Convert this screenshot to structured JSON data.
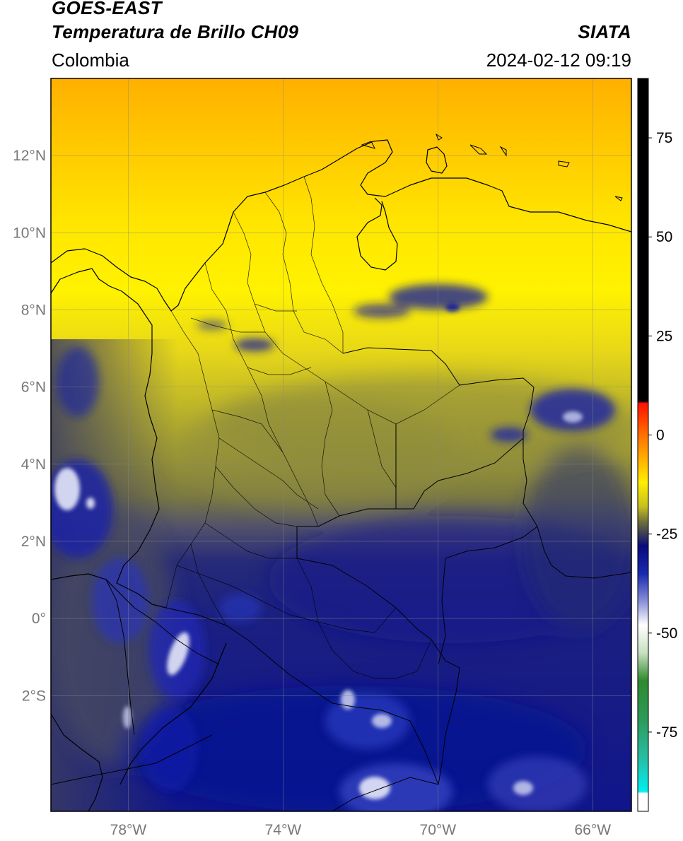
{
  "header": {
    "title_line1": "GOES-EAST",
    "title_line2": "Temperatura de Brillo CH09",
    "region": "Colombia",
    "brand": "SIATA",
    "timestamp": "2024-02-12 09:19"
  },
  "map": {
    "lon_range": [
      -80.0,
      -65.0
    ],
    "lat_range": [
      -5.0,
      14.0
    ],
    "lat_ticks": [
      {
        "value": 12,
        "label": "12°N"
      },
      {
        "value": 10,
        "label": "10°N"
      },
      {
        "value": 8,
        "label": "8°N"
      },
      {
        "value": 6,
        "label": "6°N"
      },
      {
        "value": 4,
        "label": "4°N"
      },
      {
        "value": 2,
        "label": "2°N"
      },
      {
        "value": 0,
        "label": "0°"
      },
      {
        "value": -2,
        "label": "2°S"
      }
    ],
    "lon_ticks": [
      {
        "value": -78,
        "label": "78°W"
      },
      {
        "value": -74,
        "label": "74°W"
      },
      {
        "value": -70,
        "label": "70°W"
      },
      {
        "value": -66,
        "label": "66°W"
      }
    ],
    "gridlines": true,
    "colors": {
      "warm_top": "#ffb000",
      "yellow": "#ffe800",
      "olive": "#8c8a3a",
      "navy": "#14197a",
      "deep_blue": "#0a0f8c",
      "cloud_white": "#dde0f5",
      "coastline": "#000000"
    }
  },
  "colorbar": {
    "range": [
      -95,
      90
    ],
    "ticks": [
      {
        "value": 75,
        "label": "75"
      },
      {
        "value": 50,
        "label": "50"
      },
      {
        "value": 25,
        "label": "25"
      },
      {
        "value": 0,
        "label": "0"
      },
      {
        "value": -25,
        "label": "-25"
      },
      {
        "value": -50,
        "label": "-50"
      },
      {
        "value": -75,
        "label": "-75"
      }
    ],
    "stops": [
      {
        "value": 90,
        "color": "#000000"
      },
      {
        "value": 8.5,
        "color": "#000000"
      },
      {
        "value": 8,
        "color": "#ff1000"
      },
      {
        "value": 0,
        "color": "#ff7000"
      },
      {
        "value": -12,
        "color": "#ffee00"
      },
      {
        "value": -18,
        "color": "#c8c020"
      },
      {
        "value": -22,
        "color": "#6e6e3a"
      },
      {
        "value": -25,
        "color": "#3c3c5a"
      },
      {
        "value": -28,
        "color": "#0a0a7a"
      },
      {
        "value": -35,
        "color": "#1a2ab0"
      },
      {
        "value": -42,
        "color": "#8a90d8"
      },
      {
        "value": -48,
        "color": "#ffffff"
      },
      {
        "value": -55,
        "color": "#c8e0c0"
      },
      {
        "value": -62,
        "color": "#2e8a2e"
      },
      {
        "value": -72,
        "color": "#2e9a5a"
      },
      {
        "value": -82,
        "color": "#26c0a8"
      },
      {
        "value": -90,
        "color": "#00f0f0"
      },
      {
        "value": -90.5,
        "color": "#ffffff"
      },
      {
        "value": -95,
        "color": "#ffffff"
      }
    ]
  }
}
